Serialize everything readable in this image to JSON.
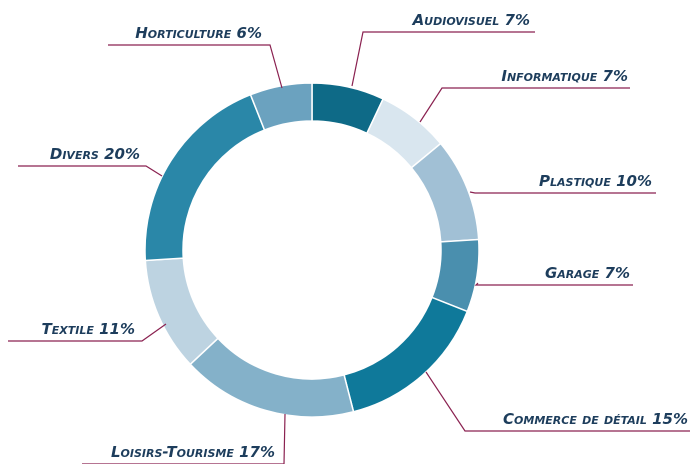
{
  "chart_data": {
    "type": "donut",
    "categories": [
      "Audiovisuel",
      "Informatique",
      "Plastique",
      "Garage",
      "Commerce de détail",
      "Loisirs-Tourisme",
      "Textile",
      "Divers",
      "Horticulture"
    ],
    "values": [
      7,
      7,
      10,
      7,
      15,
      17,
      11,
      20,
      6
    ],
    "value_labels": [
      "7%",
      "7%",
      "10%",
      "7%",
      "15%",
      "17%",
      "11%",
      "20%",
      "6%"
    ],
    "colors": [
      "#0e6a87",
      "#d9e6ef",
      "#a1c0d5",
      "#4a8fae",
      "#0f799a",
      "#84b1c9",
      "#bdd3e1",
      "#2a87a8",
      "#6ba2bf"
    ]
  }
}
